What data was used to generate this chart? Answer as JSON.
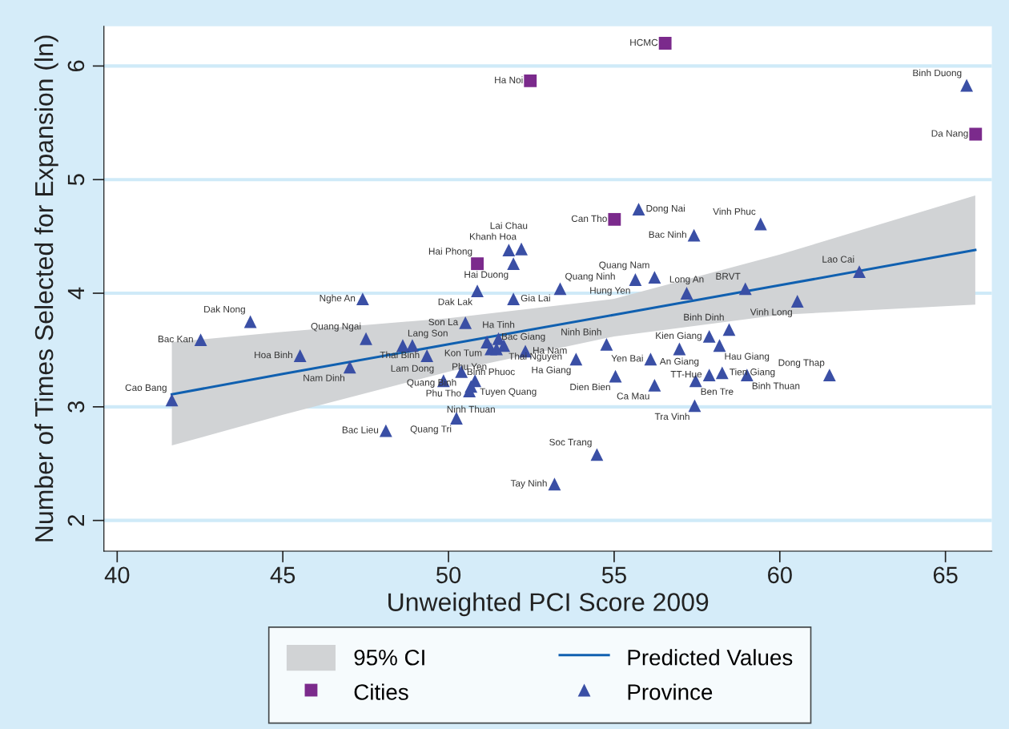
{
  "chart_data": {
    "type": "scatter",
    "xlabel": "Unweighted PCI Score 2009",
    "ylabel": "Number of Times Selected for Expansion (ln)",
    "xlim": [
      39.6,
      66.4
    ],
    "ylim": [
      1.73,
      6.35
    ],
    "xticks": [
      40,
      45,
      50,
      55,
      60,
      65
    ],
    "yticks": [
      2,
      3,
      4,
      5,
      6
    ],
    "grid": "y",
    "legend": "bottom",
    "series": [
      {
        "name": "Predicted Values",
        "type": "line",
        "color": "#1060b0",
        "marker": "none",
        "line_style": "solid",
        "x": [
          41.65,
          45,
          50,
          55,
          60,
          65.9
        ],
        "values": [
          3.11,
          3.29,
          3.55,
          3.81,
          4.07,
          4.38
        ],
        "lower": [
          2.66,
          2.93,
          3.31,
          3.62,
          3.81,
          3.9
        ],
        "upper": [
          3.57,
          3.66,
          3.78,
          3.95,
          4.34,
          4.86
        ]
      },
      {
        "name": "Cities",
        "type": "scatter",
        "color": "#7b2a8c",
        "marker": "square",
        "x": [
          56.54,
          52.47,
          65.91,
          55.01,
          50.87
        ],
        "values": [
          6.2,
          5.87,
          5.4,
          4.65,
          4.26
        ]
      },
      {
        "name": "Province",
        "type": "scatter",
        "color": "#3a4fa5",
        "marker": "triangle",
        "x": [
          65.64,
          55.74,
          59.42,
          57.41,
          52.2,
          51.82,
          51.96,
          56.22,
          55.64,
          53.37,
          50.87,
          58.96,
          62.4,
          57.19,
          51.96,
          47.41,
          60.53,
          44.02,
          50.51,
          58.47,
          42.52,
          47.51,
          57.87,
          58.18,
          56.97,
          56.1,
          54.77,
          53.85,
          51.51,
          51.16,
          51.67,
          51.28,
          51.45,
          52.32,
          48.62,
          48.91,
          49.35,
          45.52,
          47.02,
          41.65,
          50.39,
          49.85,
          50.8,
          50.68,
          50.63,
          50.24,
          48.11,
          54.48,
          53.2,
          55.04,
          56.22,
          57.46,
          57.87,
          58.26,
          59.01,
          57.43,
          61.5
        ],
        "values": [
          5.83,
          4.74,
          4.61,
          4.51,
          4.39,
          4.38,
          4.26,
          4.14,
          4.12,
          4.04,
          4.02,
          4.04,
          4.19,
          4.0,
          3.95,
          3.95,
          3.93,
          3.75,
          3.74,
          3.68,
          3.59,
          3.6,
          3.62,
          3.54,
          3.51,
          3.42,
          3.55,
          3.42,
          3.6,
          3.57,
          3.54,
          3.51,
          3.51,
          3.49,
          3.54,
          3.54,
          3.45,
          3.45,
          3.35,
          3.06,
          3.31,
          3.23,
          3.23,
          3.18,
          3.14,
          2.9,
          2.79,
          2.58,
          2.32,
          3.27,
          3.19,
          3.23,
          3.28,
          3.3,
          3.28,
          3.01,
          3.28
        ]
      }
    ],
    "annotations": [
      "95% CI",
      {
        "text": "HCMC",
        "x": 56.54,
        "y": 6.2
      },
      {
        "text": "Ha Noi",
        "x": 52.47,
        "y": 5.87
      },
      {
        "text": "Da Nang",
        "x": 65.91,
        "y": 5.4
      },
      {
        "text": "Can Tho",
        "x": 55.01,
        "y": 4.65
      },
      {
        "text": "Hai Phong",
        "x": 50.87,
        "y": 4.26
      },
      {
        "text": "Binh Duong",
        "x": 65.64,
        "y": 5.83
      },
      {
        "text": "Dong Nai",
        "x": 55.74,
        "y": 4.74
      },
      {
        "text": "Vinh Phuc",
        "x": 59.42,
        "y": 4.61
      },
      {
        "text": "Bac Ninh",
        "x": 57.41,
        "y": 4.51
      },
      {
        "text": "Khanh Hoa",
        "x": 52.2,
        "y": 4.39
      },
      {
        "text": "Lai Chau",
        "x": 51.82,
        "y": 4.38
      },
      {
        "text": "Hai Duong",
        "x": 51.96,
        "y": 4.26
      },
      {
        "text": "Quang Nam",
        "x": 56.22,
        "y": 4.14
      },
      {
        "text": "Hung Yen",
        "x": 55.64,
        "y": 4.12
      },
      {
        "text": "Quang Ninh",
        "x": 53.37,
        "y": 4.04
      },
      {
        "text": "Dak Lak",
        "x": 50.87,
        "y": 4.02
      },
      {
        "text": "BRVT",
        "x": 58.96,
        "y": 4.04
      },
      {
        "text": "Lao Cai",
        "x": 62.4,
        "y": 4.19
      },
      {
        "text": "Long An",
        "x": 57.19,
        "y": 4.0
      },
      {
        "text": "Gia Lai",
        "x": 51.96,
        "y": 3.95
      },
      {
        "text": "Nghe An",
        "x": 47.41,
        "y": 3.95
      },
      {
        "text": "Vinh Long",
        "x": 60.53,
        "y": 3.93
      },
      {
        "text": "Dak Nong",
        "x": 44.02,
        "y": 3.75
      },
      {
        "text": "Son La",
        "x": 50.51,
        "y": 3.74
      },
      {
        "text": "Binh Dinh",
        "x": 58.47,
        "y": 3.68
      },
      {
        "text": "Bac Kan",
        "x": 42.52,
        "y": 3.59
      },
      {
        "text": "Quang Ngai",
        "x": 47.51,
        "y": 3.6
      },
      {
        "text": "Kien Giang",
        "x": 57.87,
        "y": 3.62
      },
      {
        "text": "Hau Giang",
        "x": 58.18,
        "y": 3.54
      },
      {
        "text": "An Giang",
        "x": 56.97,
        "y": 3.51
      },
      {
        "text": "Yen Bai",
        "x": 56.1,
        "y": 3.42
      },
      {
        "text": "Ninh Binh",
        "x": 54.77,
        "y": 3.55
      },
      {
        "text": "Ha Giang",
        "x": 53.85,
        "y": 3.42
      },
      {
        "text": "Ha Tinh",
        "x": 51.51,
        "y": 3.6
      },
      {
        "text": "Kon Tum",
        "x": 51.16,
        "y": 3.57
      },
      {
        "text": "Thai Nguyen",
        "x": 51.67,
        "y": 3.54
      },
      {
        "text": "Binh Phuoc",
        "x": 51.28,
        "y": 3.51
      },
      {
        "text": "Bac Giang",
        "x": 51.45,
        "y": 3.51
      },
      {
        "text": "Ha Nam",
        "x": 52.32,
        "y": 3.49
      },
      {
        "text": "Lang Son",
        "x": 48.62,
        "y": 3.54
      },
      {
        "text": "Lam Dong",
        "x": 48.91,
        "y": 3.54
      },
      {
        "text": "Thai Binh",
        "x": 49.35,
        "y": 3.45
      },
      {
        "text": "Hoa Binh",
        "x": 45.52,
        "y": 3.45
      },
      {
        "text": "Nam Dinh",
        "x": 47.02,
        "y": 3.35
      },
      {
        "text": "Cao Bang",
        "x": 41.65,
        "y": 3.06
      },
      {
        "text": "Quang Binh",
        "x": 50.39,
        "y": 3.31
      },
      {
        "text": "Phu Tho",
        "x": 49.85,
        "y": 3.23
      },
      {
        "text": "Tuyen Quang",
        "x": 50.8,
        "y": 3.23
      },
      {
        "text": "Ninh Thuan",
        "x": 50.68,
        "y": 3.18
      },
      {
        "text": "Phu Yen",
        "x": 50.63,
        "y": 3.14
      },
      {
        "text": "Quang Tri",
        "x": 50.24,
        "y": 2.9
      },
      {
        "text": "Bac Lieu",
        "x": 48.11,
        "y": 2.79
      },
      {
        "text": "Soc Trang",
        "x": 54.48,
        "y": 2.58
      },
      {
        "text": "Tay Ninh",
        "x": 53.2,
        "y": 2.32
      },
      {
        "text": "Dien Bien",
        "x": 55.04,
        "y": 3.27
      },
      {
        "text": "Ca Mau",
        "x": 56.22,
        "y": 3.19
      },
      {
        "text": "Ben Tre",
        "x": 57.46,
        "y": 3.23
      },
      {
        "text": "TT-Hue",
        "x": 57.87,
        "y": 3.28
      },
      {
        "text": "Tien Giang",
        "x": 58.26,
        "y": 3.3
      },
      {
        "text": "Binh Thuan",
        "x": 59.01,
        "y": 3.28
      },
      {
        "text": "Tra Vinh",
        "x": 57.43,
        "y": 3.01
      },
      {
        "text": "Dong Thap",
        "x": 61.5,
        "y": 3.28
      }
    ]
  }
}
